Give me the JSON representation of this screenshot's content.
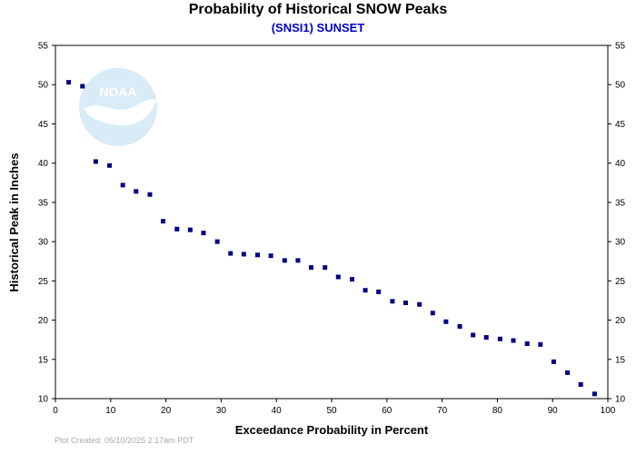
{
  "chart_data": {
    "type": "scatter",
    "title": "Probability of Historical SNOW Peaks",
    "subtitle": "(SNSI1) SUNSET",
    "xlabel": "Exceedance Probability in Percent",
    "ylabel": "Historical Peak in Inches",
    "xlim": [
      0,
      100
    ],
    "ylim": [
      10,
      55
    ],
    "xticks": [
      0,
      10,
      20,
      30,
      40,
      50,
      60,
      70,
      80,
      90,
      100
    ],
    "yticks": [
      10,
      15,
      20,
      25,
      30,
      35,
      40,
      45,
      50,
      55
    ],
    "grid": false,
    "marker_color": "#000080",
    "x": [
      2.4,
      4.9,
      7.3,
      9.8,
      12.2,
      14.6,
      17.1,
      19.5,
      22.0,
      24.4,
      26.8,
      29.3,
      31.7,
      34.1,
      36.6,
      39.0,
      41.5,
      43.9,
      46.3,
      48.8,
      51.2,
      53.7,
      56.1,
      58.5,
      61.0,
      63.4,
      65.9,
      68.3,
      70.7,
      73.2,
      75.6,
      78.0,
      80.5,
      82.9,
      85.4,
      87.8,
      90.2,
      92.7,
      95.1,
      97.6
    ],
    "y": [
      50.3,
      49.8,
      40.2,
      39.7,
      37.2,
      36.4,
      36.0,
      32.6,
      31.6,
      31.5,
      31.1,
      30.0,
      28.5,
      28.4,
      28.3,
      28.2,
      27.6,
      27.6,
      26.7,
      26.7,
      25.5,
      25.2,
      23.8,
      23.6,
      22.4,
      22.2,
      22.0,
      20.9,
      19.8,
      19.2,
      18.1,
      17.8,
      17.6,
      17.4,
      17.0,
      16.9,
      14.7,
      13.3,
      11.8,
      10.6
    ]
  },
  "logo": {
    "text": "NOAA",
    "color": "#cfe6f5"
  },
  "footer": {
    "text": "Plot Created: 05/10/2025 2:17am PDT"
  }
}
